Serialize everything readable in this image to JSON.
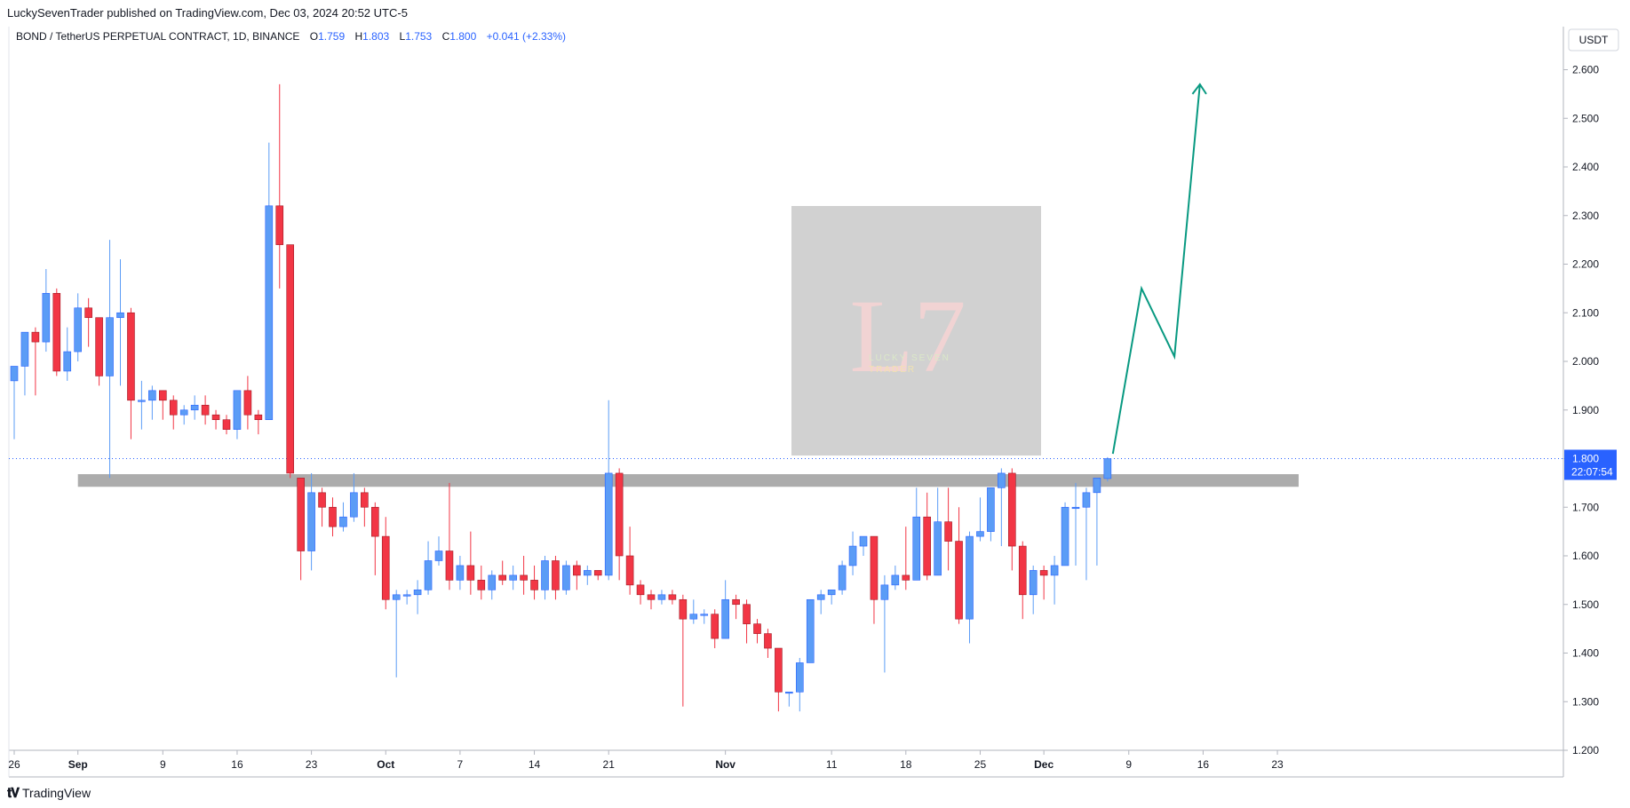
{
  "publisher": "LuckySevenTrader published on TradingView.com, Dec 03, 2024 20:52 UTC-5",
  "footer": {
    "brand": "TradingView"
  },
  "watermark": {
    "letters": "L7",
    "line1": "LUCKY SEVEN",
    "line2": "TRADER"
  },
  "price_label": {
    "price": "1.800",
    "countdown": "22:07:54"
  },
  "colors": {
    "up": "#5b9cf6",
    "down": "#f23645",
    "projection": "#089981",
    "zone": "#9e9e9e",
    "grid": "#e0e3eb"
  },
  "chart_data": {
    "type": "candlestick",
    "legend": {
      "symbol": "BOND / TetherUS PERPETUAL CONTRACT, 1D, BINANCE",
      "open_label": "O",
      "open": "1.759",
      "high_label": "H",
      "high": "1.803",
      "low_label": "L",
      "low": "1.753",
      "close_label": "C",
      "close": "1.800",
      "change": "+0.041 (+2.33%)"
    },
    "y_axis": {
      "unit": "USDT",
      "ylim": [
        1.2,
        2.7
      ],
      "ticks": [
        "1.200",
        "1.300",
        "1.400",
        "1.500",
        "1.600",
        "1.700",
        "1.800",
        "1.900",
        "2.000",
        "2.100",
        "2.200",
        "2.300",
        "2.400",
        "2.500",
        "2.600"
      ]
    },
    "x_axis": {
      "ticks": [
        {
          "label": "26",
          "day": 0
        },
        {
          "label": "Sep",
          "day": 6
        },
        {
          "label": "9",
          "day": 14
        },
        {
          "label": "16",
          "day": 21
        },
        {
          "label": "23",
          "day": 28
        },
        {
          "label": "Oct",
          "day": 35
        },
        {
          "label": "7",
          "day": 42
        },
        {
          "label": "14",
          "day": 49
        },
        {
          "label": "21",
          "day": 56
        },
        {
          "label": "Nov",
          "day": 67
        },
        {
          "label": "11",
          "day": 77
        },
        {
          "label": "18",
          "day": 84
        },
        {
          "label": "25",
          "day": 91
        },
        {
          "label": "Dec",
          "day": 97
        },
        {
          "label": "9",
          "day": 105
        },
        {
          "label": "16",
          "day": 112
        },
        {
          "label": "23",
          "day": 119
        }
      ]
    },
    "candles": [
      [
        1.96,
        1.99,
        1.84,
        1.99
      ],
      [
        1.99,
        2.06,
        1.93,
        2.06
      ],
      [
        2.06,
        2.04,
        1.93,
        2.07
      ],
      [
        2.04,
        2.14,
        2.02,
        2.19
      ],
      [
        2.14,
        1.98,
        1.97,
        2.15
      ],
      [
        1.98,
        2.02,
        1.96,
        2.07
      ],
      [
        2.02,
        2.11,
        2.0,
        2.14
      ],
      [
        2.11,
        2.09,
        2.03,
        2.13
      ],
      [
        2.09,
        1.97,
        1.95,
        2.09
      ],
      [
        1.97,
        2.09,
        1.76,
        2.25
      ],
      [
        2.09,
        2.1,
        1.95,
        2.21
      ],
      [
        2.1,
        1.92,
        1.84,
        2.11
      ],
      [
        1.92,
        1.92,
        1.86,
        1.96
      ],
      [
        1.92,
        1.94,
        1.88,
        1.95
      ],
      [
        1.94,
        1.92,
        1.88,
        1.94
      ],
      [
        1.92,
        1.89,
        1.86,
        1.93
      ],
      [
        1.89,
        1.9,
        1.87,
        1.91
      ],
      [
        1.9,
        1.91,
        1.88,
        1.93
      ],
      [
        1.91,
        1.89,
        1.87,
        1.93
      ],
      [
        1.89,
        1.88,
        1.86,
        1.9
      ],
      [
        1.88,
        1.86,
        1.85,
        1.89
      ],
      [
        1.86,
        1.94,
        1.84,
        1.94
      ],
      [
        1.94,
        1.89,
        1.86,
        1.97
      ],
      [
        1.89,
        1.88,
        1.85,
        1.9
      ],
      [
        1.88,
        2.32,
        1.88,
        2.45
      ],
      [
        2.32,
        2.24,
        2.15,
        2.57
      ],
      [
        2.24,
        1.77,
        1.76,
        2.24
      ],
      [
        1.76,
        1.61,
        1.55,
        1.76
      ],
      [
        1.61,
        1.73,
        1.57,
        1.77
      ],
      [
        1.73,
        1.7,
        1.66,
        1.74
      ],
      [
        1.7,
        1.66,
        1.64,
        1.72
      ],
      [
        1.66,
        1.68,
        1.65,
        1.71
      ],
      [
        1.68,
        1.73,
        1.67,
        1.77
      ],
      [
        1.73,
        1.7,
        1.66,
        1.74
      ],
      [
        1.7,
        1.64,
        1.56,
        1.71
      ],
      [
        1.64,
        1.51,
        1.49,
        1.68
      ],
      [
        1.51,
        1.52,
        1.35,
        1.53
      ],
      [
        1.52,
        1.52,
        1.5,
        1.53
      ],
      [
        1.52,
        1.53,
        1.48,
        1.55
      ],
      [
        1.53,
        1.59,
        1.52,
        1.63
      ],
      [
        1.59,
        1.61,
        1.58,
        1.64
      ],
      [
        1.61,
        1.55,
        1.53,
        1.75
      ],
      [
        1.55,
        1.58,
        1.53,
        1.6
      ],
      [
        1.58,
        1.55,
        1.52,
        1.65
      ],
      [
        1.55,
        1.53,
        1.51,
        1.58
      ],
      [
        1.53,
        1.56,
        1.51,
        1.57
      ],
      [
        1.56,
        1.55,
        1.54,
        1.59
      ],
      [
        1.55,
        1.56,
        1.53,
        1.58
      ],
      [
        1.56,
        1.55,
        1.52,
        1.6
      ],
      [
        1.55,
        1.53,
        1.51,
        1.58
      ],
      [
        1.53,
        1.59,
        1.51,
        1.6
      ],
      [
        1.59,
        1.53,
        1.51,
        1.6
      ],
      [
        1.53,
        1.58,
        1.52,
        1.59
      ],
      [
        1.58,
        1.56,
        1.53,
        1.59
      ],
      [
        1.56,
        1.57,
        1.54,
        1.58
      ],
      [
        1.57,
        1.56,
        1.55,
        1.57
      ],
      [
        1.56,
        1.77,
        1.55,
        1.92
      ],
      [
        1.77,
        1.6,
        1.55,
        1.78
      ],
      [
        1.6,
        1.54,
        1.52,
        1.66
      ],
      [
        1.54,
        1.52,
        1.5,
        1.55
      ],
      [
        1.52,
        1.51,
        1.49,
        1.53
      ],
      [
        1.51,
        1.52,
        1.5,
        1.53
      ],
      [
        1.52,
        1.51,
        1.5,
        1.53
      ],
      [
        1.51,
        1.47,
        1.29,
        1.52
      ],
      [
        1.47,
        1.48,
        1.46,
        1.51
      ],
      [
        1.48,
        1.48,
        1.46,
        1.49
      ],
      [
        1.48,
        1.43,
        1.41,
        1.49
      ],
      [
        1.43,
        1.51,
        1.43,
        1.55
      ],
      [
        1.51,
        1.5,
        1.47,
        1.52
      ],
      [
        1.5,
        1.46,
        1.42,
        1.51
      ],
      [
        1.46,
        1.44,
        1.42,
        1.47
      ],
      [
        1.44,
        1.41,
        1.39,
        1.45
      ],
      [
        1.41,
        1.32,
        1.28,
        1.41
      ],
      [
        1.32,
        1.32,
        1.29,
        1.32
      ],
      [
        1.32,
        1.38,
        1.28,
        1.39
      ],
      [
        1.38,
        1.51,
        1.38,
        1.51
      ],
      [
        1.51,
        1.52,
        1.48,
        1.53
      ],
      [
        1.52,
        1.53,
        1.5,
        1.53
      ],
      [
        1.53,
        1.58,
        1.52,
        1.59
      ],
      [
        1.58,
        1.62,
        1.56,
        1.65
      ],
      [
        1.62,
        1.64,
        1.6,
        1.64
      ],
      [
        1.64,
        1.51,
        1.46,
        1.64
      ],
      [
        1.51,
        1.54,
        1.36,
        1.56
      ],
      [
        1.54,
        1.56,
        1.53,
        1.58
      ],
      [
        1.56,
        1.55,
        1.53,
        1.66
      ],
      [
        1.55,
        1.68,
        1.55,
        1.74
      ],
      [
        1.68,
        1.56,
        1.55,
        1.73
      ],
      [
        1.56,
        1.67,
        1.56,
        1.74
      ],
      [
        1.67,
        1.63,
        1.57,
        1.74
      ],
      [
        1.63,
        1.47,
        1.46,
        1.7
      ],
      [
        1.47,
        1.64,
        1.42,
        1.65
      ],
      [
        1.64,
        1.65,
        1.63,
        1.72
      ],
      [
        1.65,
        1.74,
        1.63,
        1.74
      ],
      [
        1.74,
        1.77,
        1.62,
        1.78
      ],
      [
        1.77,
        1.62,
        1.57,
        1.78
      ],
      [
        1.62,
        1.52,
        1.47,
        1.63
      ],
      [
        1.52,
        1.57,
        1.48,
        1.58
      ],
      [
        1.57,
        1.56,
        1.51,
        1.58
      ],
      [
        1.56,
        1.58,
        1.5,
        1.6
      ],
      [
        1.58,
        1.7,
        1.58,
        1.71
      ],
      [
        1.7,
        1.7,
        1.58,
        1.75
      ],
      [
        1.7,
        1.73,
        1.55,
        1.74
      ],
      [
        1.73,
        1.76,
        1.58,
        1.76
      ],
      [
        1.759,
        1.8,
        1.753,
        1.803
      ]
    ],
    "annotations": {
      "support_zone": {
        "from_day": 6,
        "to_day": 121,
        "low": 1.742,
        "high": 1.768
      },
      "last_price_line": 1.8,
      "projection_path": [
        {
          "day": 103.5,
          "price": 1.81
        },
        {
          "day": 106.2,
          "price": 2.15
        },
        {
          "day": 109.3,
          "price": 2.01
        },
        {
          "day": 111.7,
          "price": 2.57
        }
      ],
      "projection_arrow": [
        {
          "day": 111.0,
          "price": 2.55
        },
        {
          "day": 111.7,
          "price": 2.57
        },
        {
          "day": 112.3,
          "price": 2.55
        }
      ]
    }
  }
}
